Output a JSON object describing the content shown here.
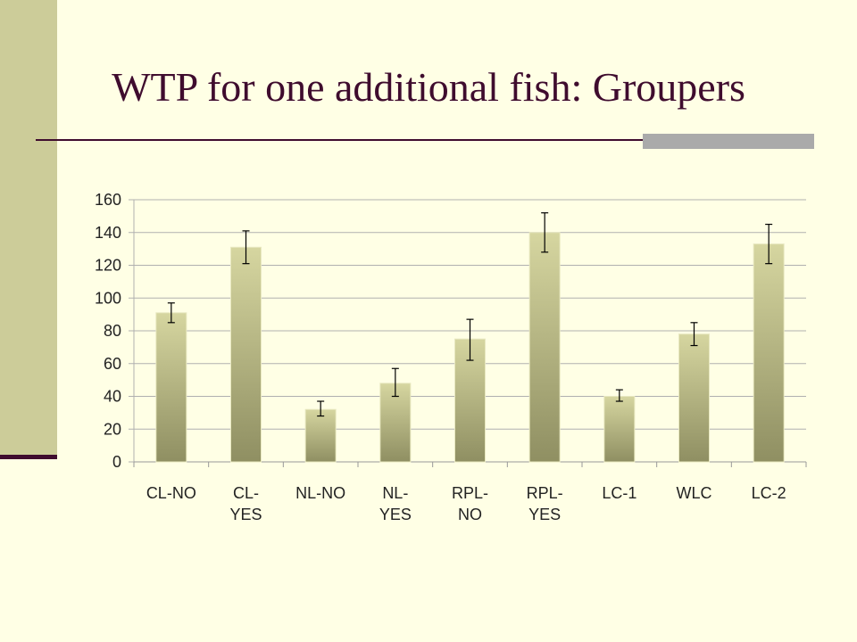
{
  "slide": {
    "title": "WTP for one additional fish: Groupers"
  },
  "colors": {
    "background": "#FFFFE5",
    "side_bar": "#CCCC99",
    "title_text": "#3F0C2E",
    "bar_top": "#D6D6A0",
    "bar_bottom": "#8F8F62",
    "gridline": "#B0B0B0"
  },
  "chart_data": {
    "type": "bar",
    "title": "",
    "xlabel": "",
    "ylabel": "",
    "ylim": [
      0,
      160
    ],
    "yticks": [
      0,
      20,
      40,
      60,
      80,
      100,
      120,
      140,
      160
    ],
    "grid": true,
    "legend": "none",
    "categories": [
      [
        "CL-NO"
      ],
      [
        "CL-",
        "YES"
      ],
      [
        "NL-NO"
      ],
      [
        "NL-",
        "YES"
      ],
      [
        "RPL-",
        "NO"
      ],
      [
        "RPL-",
        "YES"
      ],
      [
        "LC-1"
      ],
      [
        "WLC"
      ],
      [
        "LC-2"
      ]
    ],
    "values": [
      91,
      131,
      32,
      48,
      75,
      140,
      40,
      78,
      133
    ],
    "error_low": [
      85,
      121,
      28,
      40,
      62,
      128,
      37,
      71,
      121
    ],
    "error_high": [
      97,
      141,
      37,
      57,
      87,
      152,
      44,
      85,
      145
    ]
  }
}
